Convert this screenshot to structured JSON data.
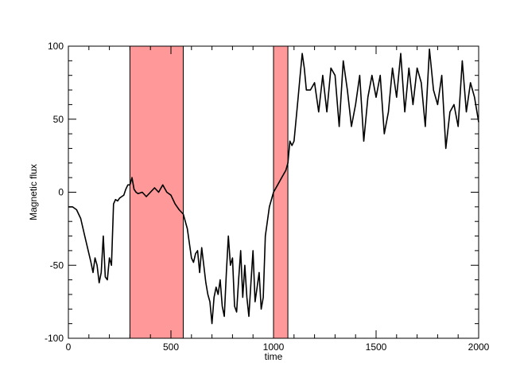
{
  "chart_data": {
    "type": "line",
    "title": "",
    "xlabel": "time",
    "ylabel": "Magnetic flux",
    "xlim": [
      0,
      2000
    ],
    "ylim": [
      -100,
      100
    ],
    "x_ticks": [
      0,
      500,
      1000,
      1500,
      2000
    ],
    "y_ticks": [
      -100,
      -50,
      0,
      50,
      100
    ],
    "grid": false,
    "colors": {
      "line": "#000000",
      "shade": "#ff9999",
      "shade_edge": "#000000"
    },
    "shaded_regions": [
      {
        "x_start": 300,
        "x_end": 560
      },
      {
        "x_start": 1000,
        "x_end": 1070
      }
    ],
    "series": [
      {
        "x": [
          0,
          20,
          40,
          60,
          80,
          100,
          110,
          120,
          130,
          140,
          150,
          160,
          170,
          180,
          190,
          200,
          210,
          220,
          230,
          240,
          250,
          260,
          270,
          280,
          290,
          300,
          310,
          320,
          330,
          340,
          360,
          380,
          400,
          420,
          440,
          460,
          480,
          500,
          520,
          540,
          560,
          580,
          600,
          610,
          620,
          630,
          640,
          650,
          660,
          670,
          680,
          690,
          700,
          710,
          720,
          730,
          740,
          750,
          760,
          770,
          780,
          790,
          800,
          810,
          820,
          830,
          840,
          850,
          860,
          870,
          880,
          890,
          900,
          910,
          920,
          930,
          940,
          950,
          960,
          980,
          1000,
          1020,
          1040,
          1060,
          1070,
          1080,
          1090,
          1100,
          1110,
          1120,
          1130,
          1140,
          1150,
          1160,
          1180,
          1200,
          1220,
          1240,
          1260,
          1280,
          1300,
          1320,
          1340,
          1360,
          1380,
          1400,
          1420,
          1440,
          1460,
          1480,
          1500,
          1520,
          1540,
          1560,
          1580,
          1600,
          1620,
          1640,
          1660,
          1680,
          1700,
          1720,
          1740,
          1760,
          1780,
          1800,
          1820,
          1840,
          1860,
          1880,
          1900,
          1920,
          1940,
          1960,
          1980,
          2000
        ],
        "y": [
          -10,
          -10,
          -12,
          -18,
          -30,
          -42,
          -48,
          -55,
          -45,
          -50,
          -62,
          -55,
          -30,
          -58,
          -60,
          -45,
          -50,
          -8,
          -5,
          -6,
          -4,
          -3,
          -2,
          2,
          5,
          5,
          10,
          2,
          0,
          -1,
          0,
          -3,
          0,
          3,
          0,
          5,
          0,
          -2,
          -8,
          -12,
          -15,
          -25,
          -45,
          -48,
          -42,
          -40,
          -55,
          -38,
          -50,
          -62,
          -70,
          -75,
          -90,
          -72,
          -65,
          -70,
          -60,
          -78,
          -85,
          -55,
          -30,
          -50,
          -45,
          -78,
          -82,
          -60,
          -40,
          -72,
          -50,
          -72,
          -85,
          -62,
          -40,
          -75,
          -65,
          -55,
          -80,
          -72,
          -30,
          -10,
          0,
          5,
          10,
          15,
          20,
          35,
          32,
          35,
          50,
          65,
          80,
          95,
          85,
          70,
          70,
          75,
          55,
          80,
          55,
          85,
          80,
          45,
          90,
          70,
          45,
          60,
          80,
          35,
          65,
          80,
          65,
          80,
          40,
          55,
          85,
          65,
          95,
          55,
          85,
          60,
          85,
          75,
          45,
          98,
          70,
          60,
          80,
          30,
          55,
          60,
          45,
          90,
          55,
          75,
          65,
          48
        ]
      }
    ]
  }
}
